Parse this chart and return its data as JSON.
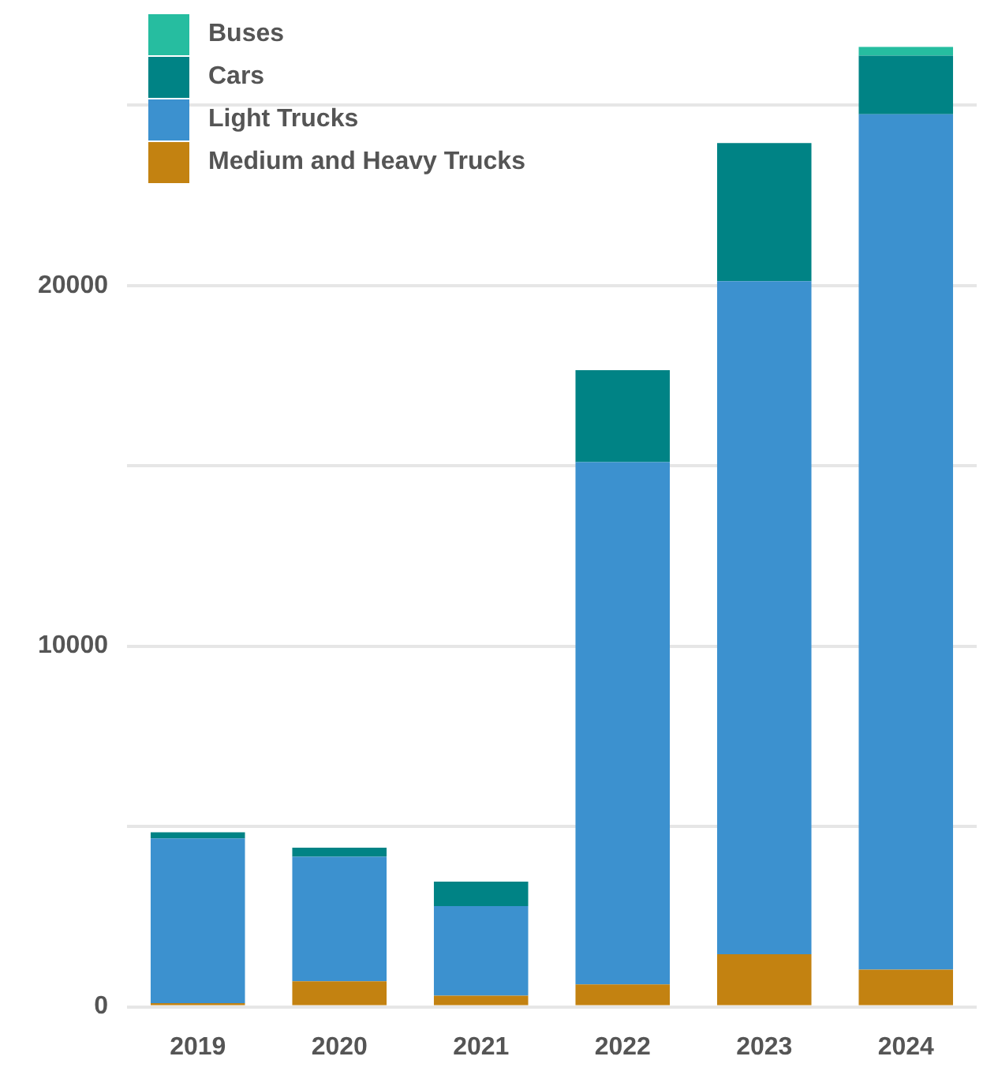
{
  "chart_data": {
    "type": "bar",
    "stacked": true,
    "categories": [
      "2019",
      "2020",
      "2021",
      "2022",
      "2023",
      "2024"
    ],
    "series": [
      {
        "name": "Medium and Heavy Trucks",
        "color": "#c38211",
        "values": [
          100,
          710,
          310,
          620,
          1460,
          1030
        ]
      },
      {
        "name": "Light Trucks",
        "color": "#3c91cf",
        "values": [
          4570,
          3450,
          2480,
          14480,
          18660,
          23720
        ]
      },
      {
        "name": "Cars",
        "color": "#008385",
        "values": [
          170,
          250,
          680,
          2550,
          3830,
          1620
        ]
      },
      {
        "name": "Buses",
        "color": "#26bda0",
        "values": [
          0,
          0,
          0,
          0,
          0,
          250
        ]
      }
    ],
    "ylim": [
      0,
      26620
    ],
    "yticks": [
      0,
      {
        "value": 5000,
        "label": null
      },
      10000,
      {
        "value": 15000,
        "label": null
      },
      20000,
      {
        "value": 25000,
        "label": null
      }
    ],
    "grid": "y",
    "legend": "top left"
  }
}
